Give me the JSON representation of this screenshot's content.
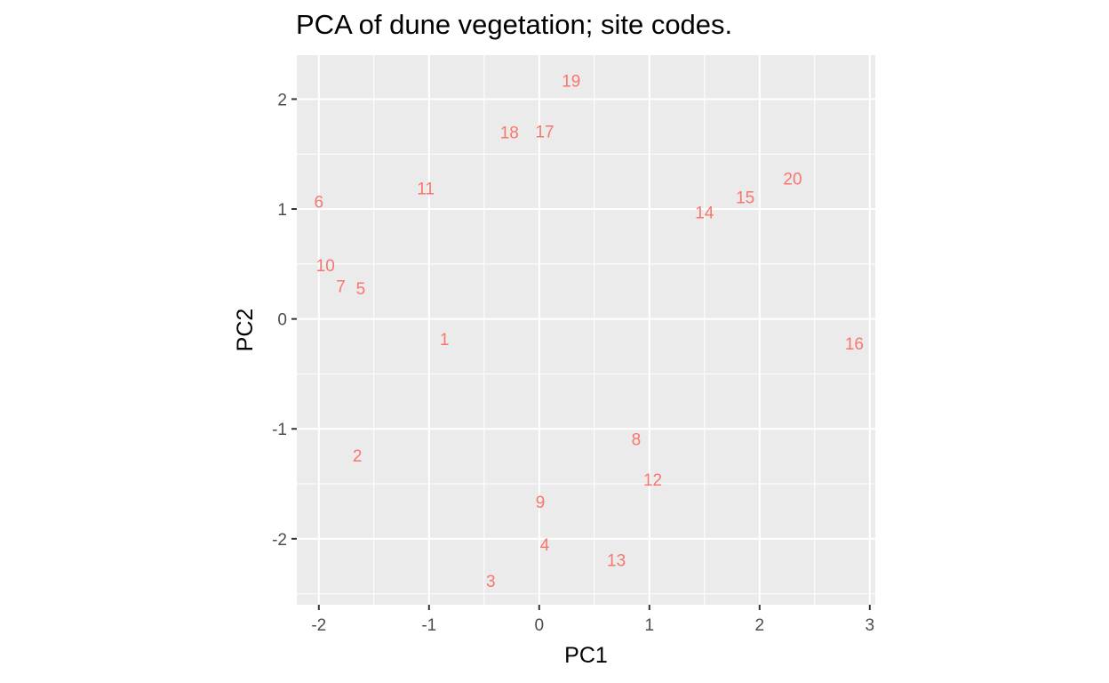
{
  "chart_data": {
    "type": "scatter",
    "title": "PCA of dune vegetation; site codes.",
    "xlabel": "PC1",
    "ylabel": "PC2",
    "xlim": [
      -2.2,
      3.05
    ],
    "ylim": [
      -2.6,
      2.4
    ],
    "x_ticks": [
      -2,
      -1,
      0,
      1,
      2,
      3
    ],
    "y_ticks": [
      -2,
      -1,
      0,
      1,
      2
    ],
    "x_tick_labels": [
      "-2",
      "-1",
      "0",
      "1",
      "2",
      "3"
    ],
    "y_tick_labels": [
      "-2",
      "-1",
      "0",
      "1",
      "2"
    ],
    "grid": true,
    "legend": "none",
    "label_color": "#F8766D",
    "panel_color": "#EBEBEB",
    "points": [
      {
        "label": "1",
        "x": -0.86,
        "y": -0.18
      },
      {
        "label": "2",
        "x": -1.65,
        "y": -1.24
      },
      {
        "label": "3",
        "x": -0.44,
        "y": -2.38
      },
      {
        "label": "4",
        "x": 0.05,
        "y": -2.05
      },
      {
        "label": "5",
        "x": -1.62,
        "y": 0.28
      },
      {
        "label": "6",
        "x": -2.0,
        "y": 1.07
      },
      {
        "label": "7",
        "x": -1.8,
        "y": 0.3
      },
      {
        "label": "8",
        "x": 0.88,
        "y": -1.09
      },
      {
        "label": "9",
        "x": 0.01,
        "y": -1.66
      },
      {
        "label": "10",
        "x": -1.94,
        "y": 0.49
      },
      {
        "label": "11",
        "x": -1.03,
        "y": 1.19
      },
      {
        "label": "12",
        "x": 1.03,
        "y": -1.46
      },
      {
        "label": "13",
        "x": 0.7,
        "y": -2.19
      },
      {
        "label": "14",
        "x": 1.5,
        "y": 0.97
      },
      {
        "label": "15",
        "x": 1.87,
        "y": 1.11
      },
      {
        "label": "16",
        "x": 2.86,
        "y": -0.22
      },
      {
        "label": "17",
        "x": 0.05,
        "y": 1.71
      },
      {
        "label": "18",
        "x": -0.27,
        "y": 1.7
      },
      {
        "label": "19",
        "x": 0.29,
        "y": 2.17
      },
      {
        "label": "20",
        "x": 2.3,
        "y": 1.28
      }
    ]
  }
}
